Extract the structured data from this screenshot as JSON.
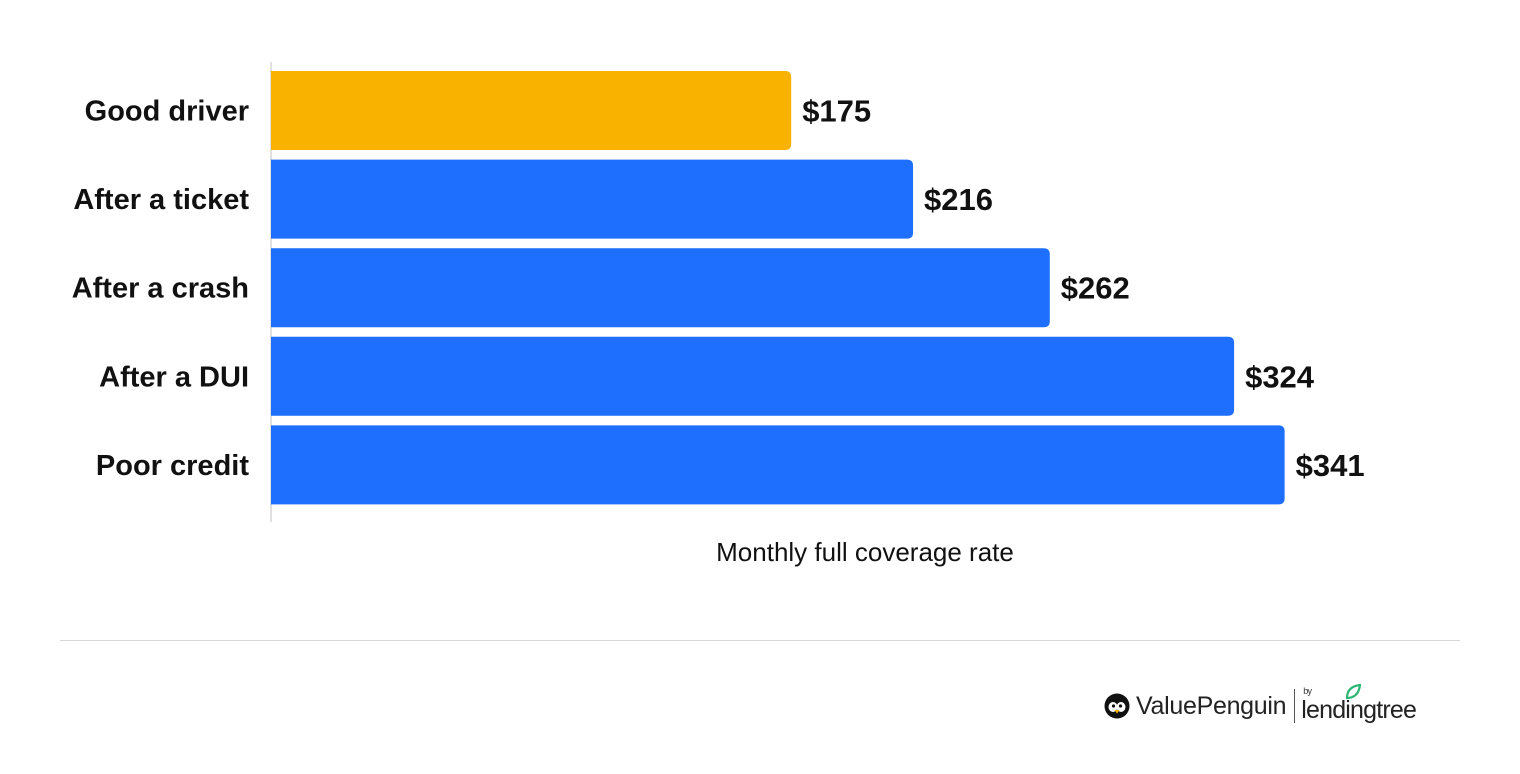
{
  "chart_data": {
    "type": "bar",
    "orientation": "horizontal",
    "categories": [
      "Good driver",
      "After a ticket",
      "After a crash",
      "After a DUI",
      "Poor credit"
    ],
    "values": [
      175,
      216,
      262,
      324,
      341
    ],
    "value_labels": [
      "$175",
      "$216",
      "$262",
      "$324",
      "$341"
    ],
    "colors": [
      "#F9B200",
      "#1F6FFF",
      "#1F6FFF",
      "#1F6FFF",
      "#1F6FFF"
    ],
    "xlabel": "Monthly full coverage rate",
    "ylabel": "",
    "xlim": [
      0,
      400
    ],
    "grid": false
  },
  "branding": {
    "brand": "ValuePenguin",
    "by": "by",
    "partner": "lendingtree",
    "icons": [
      "penguin-icon",
      "leaf-icon"
    ]
  }
}
